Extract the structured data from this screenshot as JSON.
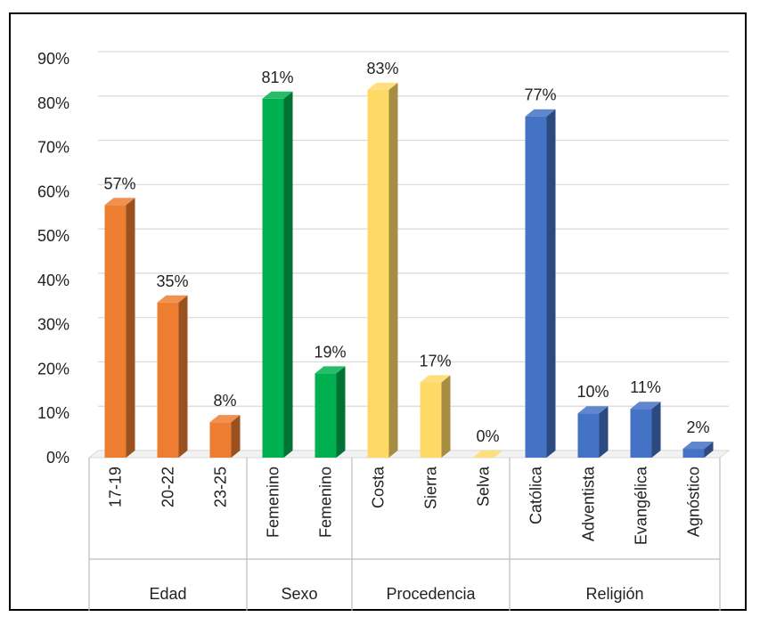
{
  "chart_data": {
    "type": "bar",
    "style": "3d-column",
    "title": "",
    "xlabel": "",
    "ylabel": "",
    "ylim": [
      0,
      90
    ],
    "y_ticks": [
      "0%",
      "10%",
      "20%",
      "30%",
      "40%",
      "50%",
      "60%",
      "70%",
      "80%",
      "90%"
    ],
    "grid": true,
    "groups": [
      {
        "name": "Edad",
        "color": "#ED7D31",
        "categories": [
          "17-19",
          "20-22",
          "23-25"
        ],
        "values": [
          57,
          35,
          8
        ],
        "labels": [
          "57%",
          "35%",
          "8%"
        ]
      },
      {
        "name": "Sexo",
        "color": "#00B050",
        "categories": [
          "Femenino",
          "Femenino"
        ],
        "values": [
          81,
          19
        ],
        "labels": [
          "81%",
          "19%"
        ]
      },
      {
        "name": "Procedencia",
        "color": "#FFD966",
        "categories": [
          "Costa",
          "Sierra",
          "Selva"
        ],
        "values": [
          83,
          17,
          0
        ],
        "labels": [
          "83%",
          "17%",
          "0%"
        ]
      },
      {
        "name": "Religión",
        "color": "#4472C4",
        "categories": [
          "Católica",
          "Adventista",
          "Evangélica",
          "Agnóstico"
        ],
        "values": [
          77,
          10,
          11,
          2
        ],
        "labels": [
          "77%",
          "10%",
          "11%",
          "2%"
        ]
      }
    ]
  }
}
